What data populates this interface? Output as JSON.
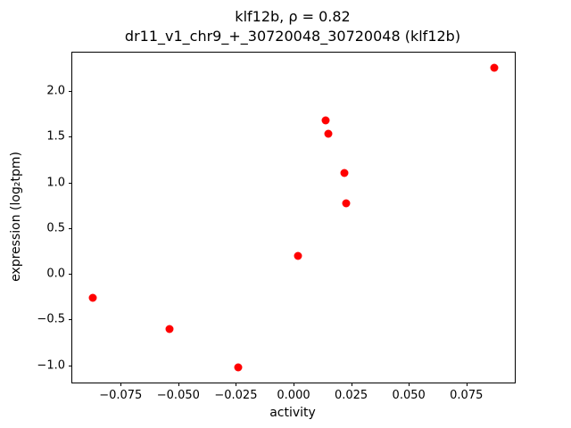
{
  "figure": {
    "title_line1": "klf12b, ρ = 0.82",
    "title_line2": "dr11_v1_chr9_+_30720048_30720048 (klf12b)",
    "xlabel": "activity",
    "ylabel": "expression (log₂tpm)"
  },
  "chart_data": {
    "type": "scatter",
    "title": "klf12b, ρ = 0.82",
    "subtitle": "dr11_v1_chr9_+_30720048_30720048 (klf12b)",
    "xlabel": "activity",
    "ylabel": "expression (log2 tpm)",
    "correlation_rho": 0.82,
    "marker_color": "#ff0000",
    "grid": false,
    "legend": null,
    "xlim": [
      -0.096,
      0.096
    ],
    "ylim": [
      -1.19,
      2.42
    ],
    "x_ticks": [
      -0.075,
      -0.05,
      -0.025,
      0.0,
      0.025,
      0.05,
      0.075
    ],
    "x_tick_labels": [
      "−0.075",
      "−0.050",
      "−0.025",
      "0.000",
      "0.025",
      "0.050",
      "0.075"
    ],
    "y_ticks": [
      -1.0,
      -0.5,
      0.0,
      0.5,
      1.0,
      1.5,
      2.0
    ],
    "y_tick_labels": [
      "−1.0",
      "−0.5",
      "0.0",
      "0.5",
      "1.0",
      "1.5",
      "2.0"
    ],
    "points": [
      {
        "x": -0.087,
        "y": -0.26
      },
      {
        "x": -0.054,
        "y": -0.6
      },
      {
        "x": -0.024,
        "y": -1.02
      },
      {
        "x": 0.002,
        "y": 0.2
      },
      {
        "x": 0.014,
        "y": 1.68
      },
      {
        "x": 0.015,
        "y": 1.53
      },
      {
        "x": 0.022,
        "y": 1.1
      },
      {
        "x": 0.023,
        "y": 0.77
      },
      {
        "x": 0.087,
        "y": 2.25
      }
    ]
  }
}
